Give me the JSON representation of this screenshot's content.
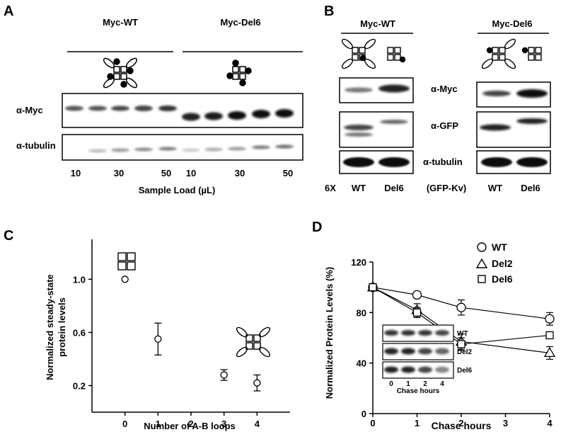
{
  "panels": {
    "A": {
      "letter": "A",
      "groups": [
        "Myc-WT",
        "Myc-Del6"
      ],
      "rows": [
        "α-Myc",
        "α-tubulin"
      ],
      "load_ticks": [
        "10",
        "30",
        "50",
        "10",
        "30",
        "50"
      ],
      "xlabel": "Sample Load (µL)"
    },
    "B": {
      "letter": "B",
      "groups": [
        "Myc-WT",
        "Myc-Del6"
      ],
      "rows": [
        "α-Myc",
        "α-GFP",
        "α-tubulin"
      ],
      "footer_prefix": "6X",
      "footer_middle": "(GFP-Kv)",
      "lanes": [
        "WT",
        "Del6",
        "WT",
        "Del6"
      ]
    },
    "C": {
      "letter": "C",
      "chart_data": {
        "type": "scatter",
        "xlabel": "Number of A-B loops",
        "ylabel_line1": "Normalized steady-state",
        "ylabel_line2": "protein levels",
        "x_ticks": [
          "0",
          "1",
          "2",
          "3",
          "4"
        ],
        "y_ticks": [
          "0.2",
          "0.6",
          "1.0"
        ],
        "xlim": [
          -1,
          5
        ],
        "ylim": [
          0,
          1.3
        ],
        "points": [
          {
            "x": 0,
            "y": 1.0,
            "err": 0.0
          },
          {
            "x": 1,
            "y": 0.55,
            "err": 0.12
          },
          {
            "x": 3,
            "y": 0.28,
            "err": 0.04
          },
          {
            "x": 4,
            "y": 0.22,
            "err": 0.06
          }
        ]
      }
    },
    "D": {
      "letter": "D",
      "chart_data": {
        "type": "line",
        "xlabel": "Chase hours",
        "ylabel": "Normalized Protein Levels (%)",
        "x_ticks": [
          "0",
          "1",
          "2",
          "3",
          "4"
        ],
        "y_ticks": [
          "0",
          "40",
          "80",
          "120"
        ],
        "xlim": [
          0,
          4
        ],
        "ylim": [
          0,
          120
        ],
        "series": [
          {
            "name": "WT",
            "marker": "circle",
            "x": [
              0,
              1,
              2,
              4
            ],
            "y": [
              100,
              94,
              84,
              75
            ],
            "err": [
              2,
              2,
              6,
              5
            ]
          },
          {
            "name": "Del2",
            "marker": "triangle",
            "x": [
              0,
              1,
              2,
              4
            ],
            "y": [
              100,
              82,
              57,
              48
            ],
            "err": [
              2,
              5,
              6,
              5
            ]
          },
          {
            "name": "Del6",
            "marker": "square",
            "x": [
              0,
              1,
              2,
              4
            ],
            "y": [
              100,
              80,
              55,
              62
            ],
            "err": [
              2,
              4,
              5,
              2
            ]
          }
        ],
        "inset": {
          "rows": [
            "WT",
            "Del2",
            "Del6"
          ],
          "ticks": [
            "0",
            "1",
            "2",
            "4"
          ],
          "xlabel": "Chase hours"
        }
      }
    }
  }
}
